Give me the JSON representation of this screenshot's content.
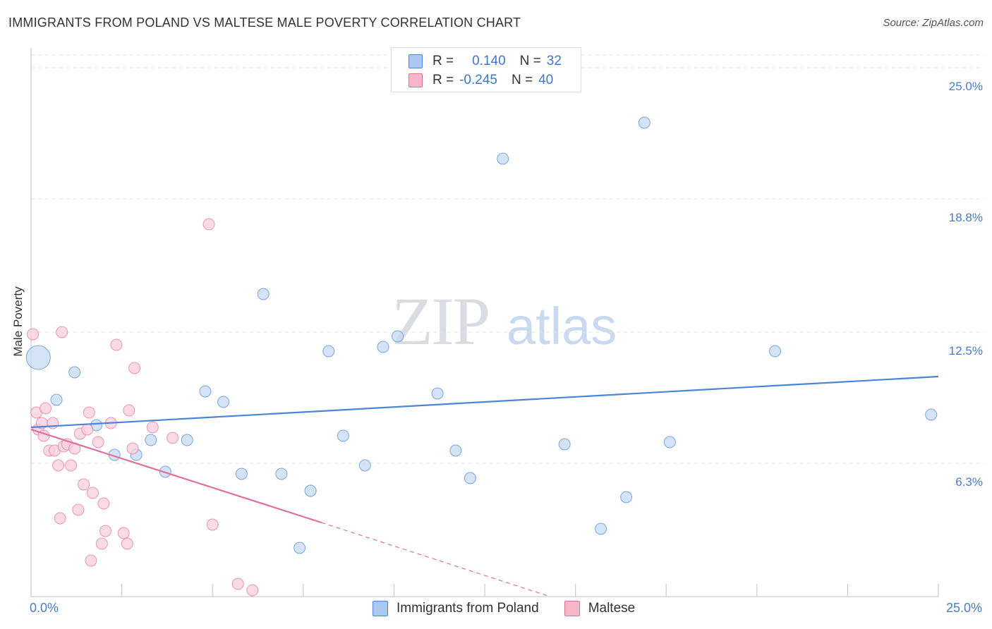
{
  "title": "IMMIGRANTS FROM POLAND VS MALTESE MALE POVERTY CORRELATION CHART",
  "source": "Source: ZipAtlas.com",
  "watermark": {
    "zip": "ZIP",
    "atlas": "atlas"
  },
  "legend_top": {
    "rows": [
      {
        "r_label": "R =",
        "r_value": "0.140",
        "n_label": "N =",
        "n_value": "32",
        "color": "#aac8f0"
      },
      {
        "r_label": "R =",
        "r_value": "-0.245",
        "n_label": "N =",
        "n_value": "40",
        "color": "#f5b8cb"
      }
    ]
  },
  "legend_bottom": {
    "items": [
      {
        "label": "Immigrants from Poland",
        "color": "#aac8f0"
      },
      {
        "label": "Maltese",
        "color": "#f5b8cb"
      }
    ]
  },
  "chart_data": {
    "type": "scatter",
    "title": "IMMIGRANTS FROM POLAND VS MALTESE MALE POVERTY CORRELATION CHART",
    "xlabel": "",
    "ylabel": "Male Poverty",
    "xlim": [
      0,
      25
    ],
    "ylim": [
      0,
      25
    ],
    "x_tick_labels": {
      "left": "0.0%",
      "right": "25.0%"
    },
    "y_ticks": [
      {
        "value": 6.3,
        "label": "6.3%"
      },
      {
        "value": 12.5,
        "label": "12.5%"
      },
      {
        "value": 18.8,
        "label": "18.8%"
      },
      {
        "value": 25.0,
        "label": "25.0%"
      }
    ],
    "series": [
      {
        "name": "Immigrants from Poland",
        "color": "#4a86d8",
        "fill": "#c6d9f3",
        "points": [
          {
            "x": 0.2,
            "y": 11.3,
            "big": true
          },
          {
            "x": 1.2,
            "y": 10.6
          },
          {
            "x": 0.7,
            "y": 9.3
          },
          {
            "x": 1.8,
            "y": 8.1
          },
          {
            "x": 2.3,
            "y": 6.7
          },
          {
            "x": 2.9,
            "y": 6.7
          },
          {
            "x": 3.3,
            "y": 7.4
          },
          {
            "x": 3.7,
            "y": 5.9
          },
          {
            "x": 4.3,
            "y": 7.4
          },
          {
            "x": 4.8,
            "y": 9.7
          },
          {
            "x": 5.3,
            "y": 9.2
          },
          {
            "x": 5.8,
            "y": 5.8
          },
          {
            "x": 6.4,
            "y": 14.3
          },
          {
            "x": 6.9,
            "y": 5.8
          },
          {
            "x": 7.4,
            "y": 2.3
          },
          {
            "x": 7.7,
            "y": 5.0
          },
          {
            "x": 8.2,
            "y": 11.6
          },
          {
            "x": 8.6,
            "y": 7.6
          },
          {
            "x": 9.2,
            "y": 6.2
          },
          {
            "x": 9.7,
            "y": 11.8
          },
          {
            "x": 10.1,
            "y": 12.3
          },
          {
            "x": 11.2,
            "y": 9.6
          },
          {
            "x": 11.7,
            "y": 6.9
          },
          {
            "x": 12.1,
            "y": 5.6
          },
          {
            "x": 13.0,
            "y": 20.7
          },
          {
            "x": 14.7,
            "y": 7.2
          },
          {
            "x": 15.7,
            "y": 3.2
          },
          {
            "x": 16.4,
            "y": 4.7
          },
          {
            "x": 16.9,
            "y": 22.4
          },
          {
            "x": 17.6,
            "y": 7.3
          },
          {
            "x": 20.5,
            "y": 11.6
          },
          {
            "x": 24.8,
            "y": 8.6
          }
        ],
        "trend": {
          "x0": 0.0,
          "y0": 8.0,
          "x1": 25.0,
          "y1": 10.4
        }
      },
      {
        "name": "Maltese",
        "color": "#e0709a",
        "fill": "#f8cfdc",
        "points": [
          {
            "x": 0.05,
            "y": 12.4
          },
          {
            "x": 0.15,
            "y": 8.7
          },
          {
            "x": 0.2,
            "y": 7.9
          },
          {
            "x": 0.3,
            "y": 8.2
          },
          {
            "x": 0.35,
            "y": 7.6
          },
          {
            "x": 0.4,
            "y": 8.9
          },
          {
            "x": 0.5,
            "y": 6.9
          },
          {
            "x": 0.6,
            "y": 8.2
          },
          {
            "x": 0.65,
            "y": 6.9
          },
          {
            "x": 0.75,
            "y": 6.2
          },
          {
            "x": 0.8,
            "y": 3.7
          },
          {
            "x": 0.85,
            "y": 12.5
          },
          {
            "x": 0.9,
            "y": 7.1
          },
          {
            "x": 1.0,
            "y": 7.2
          },
          {
            "x": 1.1,
            "y": 6.2
          },
          {
            "x": 1.2,
            "y": 7.0
          },
          {
            "x": 1.3,
            "y": 4.1
          },
          {
            "x": 1.35,
            "y": 7.7
          },
          {
            "x": 1.45,
            "y": 5.3
          },
          {
            "x": 1.55,
            "y": 7.9
          },
          {
            "x": 1.6,
            "y": 8.7
          },
          {
            "x": 1.65,
            "y": 1.7
          },
          {
            "x": 1.7,
            "y": 4.9
          },
          {
            "x": 1.85,
            "y": 7.3
          },
          {
            "x": 1.95,
            "y": 2.5
          },
          {
            "x": 2.0,
            "y": 4.4
          },
          {
            "x": 2.05,
            "y": 3.1
          },
          {
            "x": 2.2,
            "y": 8.2
          },
          {
            "x": 2.35,
            "y": 11.9
          },
          {
            "x": 2.55,
            "y": 3.0
          },
          {
            "x": 2.65,
            "y": 2.5
          },
          {
            "x": 2.7,
            "y": 8.8
          },
          {
            "x": 2.8,
            "y": 7.0
          },
          {
            "x": 2.85,
            "y": 10.8
          },
          {
            "x": 3.35,
            "y": 8.0
          },
          {
            "x": 3.9,
            "y": 7.5
          },
          {
            "x": 4.9,
            "y": 17.6
          },
          {
            "x": 5.0,
            "y": 3.4
          },
          {
            "x": 5.7,
            "y": 0.6
          },
          {
            "x": 6.1,
            "y": 0.3
          }
        ],
        "trend": {
          "x0": 0.0,
          "y0": 7.9,
          "x1": 8.0,
          "y1": 3.5
        },
        "trend_dashed": {
          "x0": 8.0,
          "y0": 3.5,
          "x1": 14.3,
          "y1": 0.0
        }
      }
    ]
  }
}
